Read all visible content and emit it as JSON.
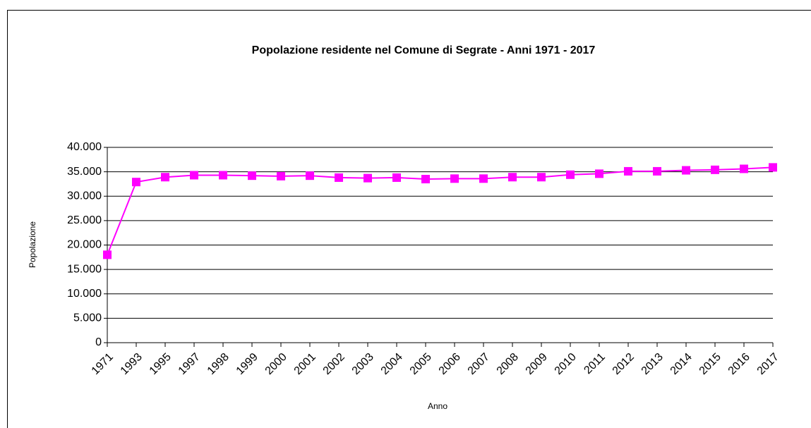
{
  "chart_data": {
    "type": "line",
    "title": "Popolazione residente nel Comune di Segrate - Anni 1971 - 2017",
    "x_label": "Anno",
    "y_label": "Popolazione",
    "categories": [
      "1971",
      "1993",
      "1995",
      "1997",
      "1998",
      "1999",
      "2000",
      "2001",
      "2002",
      "2003",
      "2004",
      "2005",
      "2006",
      "2007",
      "2008",
      "2009",
      "2010",
      "2011",
      "2012",
      "2013",
      "2014",
      "2015",
      "2016",
      "2017"
    ],
    "series": [
      {
        "name": "Popolazione",
        "color": "#ff00ff",
        "values": [
          18000,
          32900,
          33900,
          34300,
          34300,
          34200,
          34100,
          34200,
          33800,
          33700,
          33800,
          33500,
          33600,
          33600,
          33900,
          33900,
          34400,
          34600,
          35100,
          35100,
          35300,
          35400,
          35600,
          35900
        ]
      }
    ],
    "ylim": [
      0,
      40000
    ],
    "yticks": [
      0,
      {
        "value": 5000,
        "label": "5.000"
      },
      {
        "value": 10000,
        "label": "10.000"
      },
      {
        "value": 15000,
        "label": "15.000"
      },
      {
        "value": 20000,
        "label": "20.000"
      },
      {
        "value": 25000,
        "label": "25.000"
      },
      {
        "value": 30000,
        "label": "30.000"
      },
      {
        "value": 35000,
        "label": "35.000"
      },
      {
        "value": 40000,
        "label": "40.000"
      }
    ],
    "grid": true
  }
}
